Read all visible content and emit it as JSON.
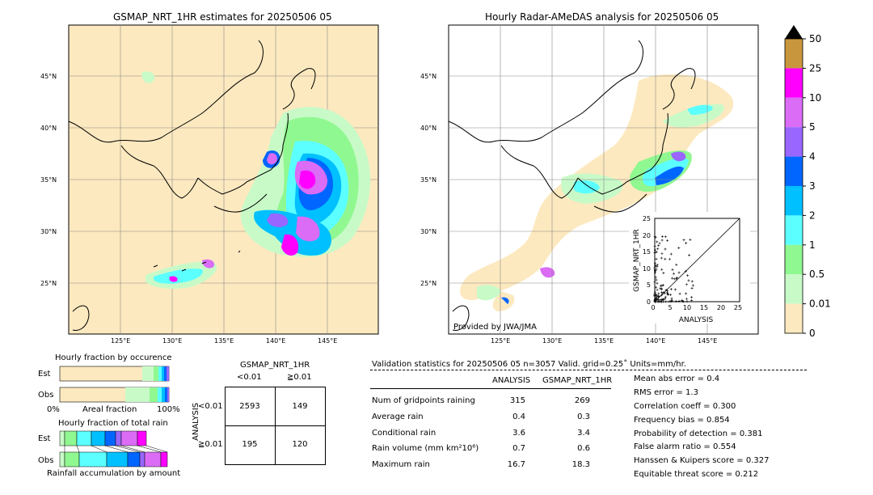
{
  "left_map": {
    "title": "GSMAP_NRT_1HR estimates for 20250506 05",
    "lat_labels": [
      "45°N",
      "40°N",
      "35°N",
      "30°N",
      "25°N"
    ],
    "lon_labels": [
      "125°E",
      "130°E",
      "135°E",
      "140°E",
      "145°E"
    ]
  },
  "right_map": {
    "title": "Hourly Radar-AMeDAS analysis for 20250506 05",
    "lat_labels": [
      "45°N",
      "40°N",
      "35°N",
      "30°N",
      "25°N"
    ],
    "lon_labels": [
      "125°E",
      "130°E",
      "135°E",
      "140°E",
      "145°E"
    ],
    "credit": "Provided by JWA/JMA"
  },
  "colorbar": {
    "labels": [
      "50",
      "25",
      "10",
      "5",
      "4",
      "3",
      "2",
      "1",
      "0.5",
      "0.01",
      "0"
    ],
    "colors": [
      "#c8963c",
      "#ff00ff",
      "#da6cf5",
      "#9966ff",
      "#0066ff",
      "#00c0ff",
      "#5cffff",
      "#90f890",
      "#c8fac8",
      "#fde9bf"
    ]
  },
  "scatter": {
    "ylabel": "GSMAP_NRT_1HR",
    "xlabel": "ANALYSIS",
    "ticks": [
      "0",
      "5",
      "10",
      "15",
      "20",
      "25"
    ]
  },
  "fraction_occurrence": {
    "title": "Hourly fraction by occurence",
    "est_label": "Est",
    "obs_label": "Obs",
    "axis_left": "0%",
    "axis_mid": "Areal fraction",
    "axis_right": "100%"
  },
  "fraction_total": {
    "title": "Hourly fraction of total rain",
    "est_label": "Est",
    "obs_label": "Obs",
    "footer": "Rainfall accumulation by amount"
  },
  "contingency": {
    "title": "GSMAP_NRT_1HR",
    "col_lt": "<0.01",
    "col_ge": "≧0.01",
    "row_axis": "ANALYSIS",
    "row_lt": "<0.01",
    "row_ge": "≧0.01",
    "a": "2593",
    "b": "149",
    "c": "195",
    "d": "120"
  },
  "validation": {
    "header": "Validation statistics for 20250506 05  n=3057 Valid. grid=0.25˚ Units=mm/hr.",
    "col_analysis": "ANALYSIS",
    "col_gsmap": "GSMAP_NRT_1HR",
    "rows": [
      {
        "label": "Num of gridpoints raining",
        "analysis": "315",
        "gsmap": "269"
      },
      {
        "label": "Average rain",
        "analysis": "0.4",
        "gsmap": "0.3"
      },
      {
        "label": "Conditional rain",
        "analysis": "3.6",
        "gsmap": "3.4"
      },
      {
        "label": "Rain volume (mm km²10⁶)",
        "analysis": "0.7",
        "gsmap": "0.6"
      },
      {
        "label": "Maximum rain",
        "analysis": "16.7",
        "gsmap": "18.3"
      }
    ],
    "scores": [
      "Mean abs error =    0.4",
      "RMS error =    1.3",
      "Correlation coeff =  0.300",
      "Frequency bias =  0.854",
      "Probability of detection =  0.381",
      "False alarm ratio =  0.554",
      "Hanssen & Kuipers score =  0.327",
      "Equitable threat score =  0.212"
    ]
  }
}
